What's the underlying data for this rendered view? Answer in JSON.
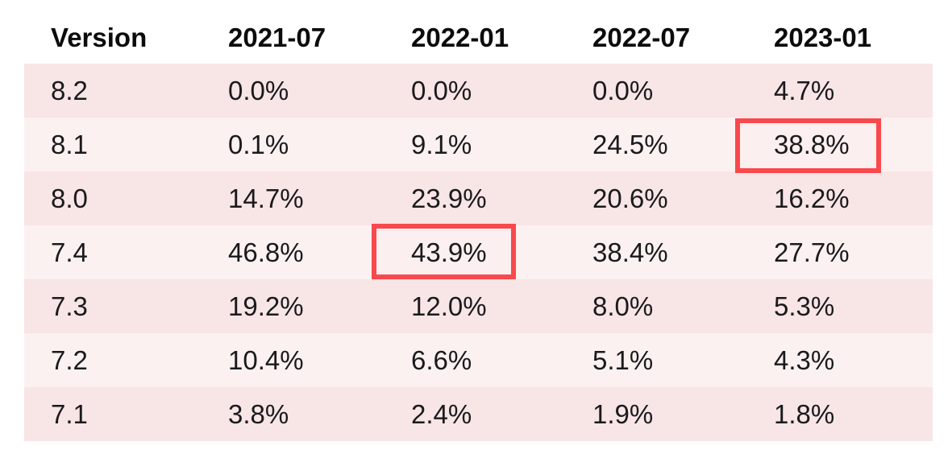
{
  "table": {
    "columns": [
      "Version",
      "2021-07",
      "2022-01",
      "2022-07",
      "2023-01"
    ],
    "rows": [
      {
        "version": "8.2",
        "values": [
          "0.0%",
          "0.0%",
          "0.0%",
          "4.7%"
        ]
      },
      {
        "version": "8.1",
        "values": [
          "0.1%",
          "9.1%",
          "24.5%",
          "38.8%"
        ]
      },
      {
        "version": "8.0",
        "values": [
          "14.7%",
          "23.9%",
          "20.6%",
          "16.2%"
        ]
      },
      {
        "version": "7.4",
        "values": [
          "46.8%",
          "43.9%",
          "38.4%",
          "27.7%"
        ]
      },
      {
        "version": "7.3",
        "values": [
          "19.2%",
          "12.0%",
          "8.0%",
          "5.3%"
        ]
      },
      {
        "version": "7.2",
        "values": [
          "10.4%",
          "6.6%",
          "5.1%",
          "4.3%"
        ]
      },
      {
        "version": "7.1",
        "values": [
          "3.8%",
          "2.4%",
          "1.9%",
          "1.8%"
        ]
      }
    ]
  },
  "chart_data": {
    "type": "table",
    "title": "",
    "columns": [
      "Version",
      "2021-07",
      "2022-01",
      "2022-07",
      "2023-01"
    ],
    "rows": [
      [
        "8.2",
        0.0,
        0.0,
        0.0,
        4.7
      ],
      [
        "8.1",
        0.1,
        9.1,
        24.5,
        38.8
      ],
      [
        "8.0",
        14.7,
        23.9,
        20.6,
        16.2
      ],
      [
        "7.4",
        46.8,
        43.9,
        38.4,
        27.7
      ],
      [
        "7.3",
        19.2,
        12.0,
        8.0,
        5.3
      ],
      [
        "7.2",
        10.4,
        6.6,
        5.1,
        4.3
      ],
      [
        "7.1",
        3.8,
        2.4,
        1.9,
        1.8
      ]
    ],
    "unit": "%",
    "highlighted_cells": [
      {
        "row": "8.1",
        "column": "2023-01",
        "value": "38.8%"
      },
      {
        "row": "7.4",
        "column": "2022-01",
        "value": "43.9%"
      }
    ]
  },
  "colors": {
    "row_light": "#fcf1f1",
    "row_dark": "#f8e5e6",
    "highlight_border": "#f9494d",
    "highlight_fill": "#fcefef",
    "text": "#1a1a1c",
    "background": "#ffffff"
  }
}
